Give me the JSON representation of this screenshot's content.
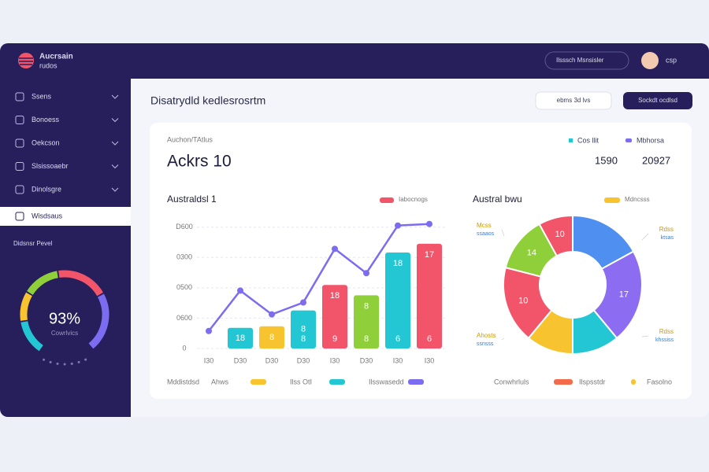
{
  "brand": {
    "name": "Aucrsain",
    "sub": "rudos"
  },
  "header": {
    "search": "Ilsssch Msnsisler",
    "user": "csp"
  },
  "sidebar": {
    "nav": [
      "Ssens",
      "Bonoess",
      "Oekcson",
      "Slsissoaebr",
      "Dinolsgre",
      "Wisdsaus"
    ],
    "section": "Didsnsr Pevel",
    "gauge": {
      "value": "93%",
      "label": "Cowrlvics"
    }
  },
  "page": {
    "title": "Disatrydld kedlesrosrtm",
    "filter": "ebms 3d lvs",
    "button": "Sockdt ocdlsd"
  },
  "summary": {
    "label": "Auchon/TAtlus",
    "headline": "Ackrs 10",
    "legend": [
      "Cos llit",
      "Mbhorsa"
    ],
    "stats": [
      "1590",
      "20927"
    ]
  },
  "chart_data": [
    {
      "type": "bar",
      "title": "Australdsl 1",
      "categories": [
        "I30",
        "D30",
        "D30",
        "D30",
        "I30",
        "D30",
        "I30",
        "I30"
      ],
      "ylim": [
        0,
        2100
      ],
      "yticks": [
        0,
        {
          "value": 500,
          "label": "0600"
        },
        {
          "value": 1000,
          "label": "0500"
        },
        {
          "value": 1500,
          "label": "0300"
        },
        {
          "value": 2000,
          "label": "D600"
        }
      ],
      "grid": true,
      "series": [
        {
          "name": "Iabocnogs",
          "type": "bar",
          "color": "#f2546a",
          "colors": [
            null,
            "#22c7d3",
            "#f7c32e",
            "#22c7d3",
            "#f2546a",
            "#8fd03a",
            "#22c7d3",
            "#f2546a"
          ],
          "values": [
            null,
            340,
            366,
            627,
            1046,
            876,
            1582,
            1725
          ],
          "bar_labels": [
            null,
            "18",
            "8",
            "8",
            "18",
            "8",
            "18",
            "17"
          ],
          "bar_base_labels": [
            null,
            null,
            null,
            "8",
            "9",
            "8",
            "6",
            "6"
          ]
        },
        {
          "name": "Ilsswasedd",
          "type": "line",
          "color": "#7b6cf0",
          "values": [
            288,
            954,
            562,
            758,
            1642,
            1242,
            2026,
            2052
          ]
        }
      ],
      "legend_title": "Mddistdsd",
      "extra_legend": [
        {
          "name": "Ahws",
          "color": "#f7c32e"
        },
        {
          "name": "Ilss OtI",
          "color": "#22c7d3"
        }
      ]
    },
    {
      "type": "pie",
      "title": "Austral bwu",
      "categories": [
        null,
        null,
        null,
        null,
        null,
        null,
        null
      ],
      "values": [
        17,
        22,
        11,
        11,
        18,
        13,
        8
      ],
      "colors": [
        "#4f8ff0",
        "#8c6cf0",
        "#22c7d3",
        "#f7c32e",
        "#f2546a",
        "#8fd03a",
        "#f2546a"
      ],
      "segment_labels": [
        null,
        "17",
        null,
        null,
        "10",
        "14",
        "10"
      ],
      "legend": [
        {
          "name": "Mdncsss",
          "color": "#f7c32e"
        }
      ],
      "annotations": [
        {
          "text": "Mcss",
          "sub": "ssaaos"
        },
        {
          "text": "Rdss",
          "sub": "ktsas"
        },
        {
          "text": "Ahosts",
          "sub": "ssnsss"
        },
        {
          "text": "Rdss",
          "sub": "khssiss"
        }
      ],
      "legend_title": "Conwhrluls",
      "extra_legend": [
        {
          "name": "Ilspsstdr",
          "color": "#f26b4a"
        },
        {
          "name": "Fasolno",
          "color": "#f7c32e"
        }
      ]
    }
  ]
}
